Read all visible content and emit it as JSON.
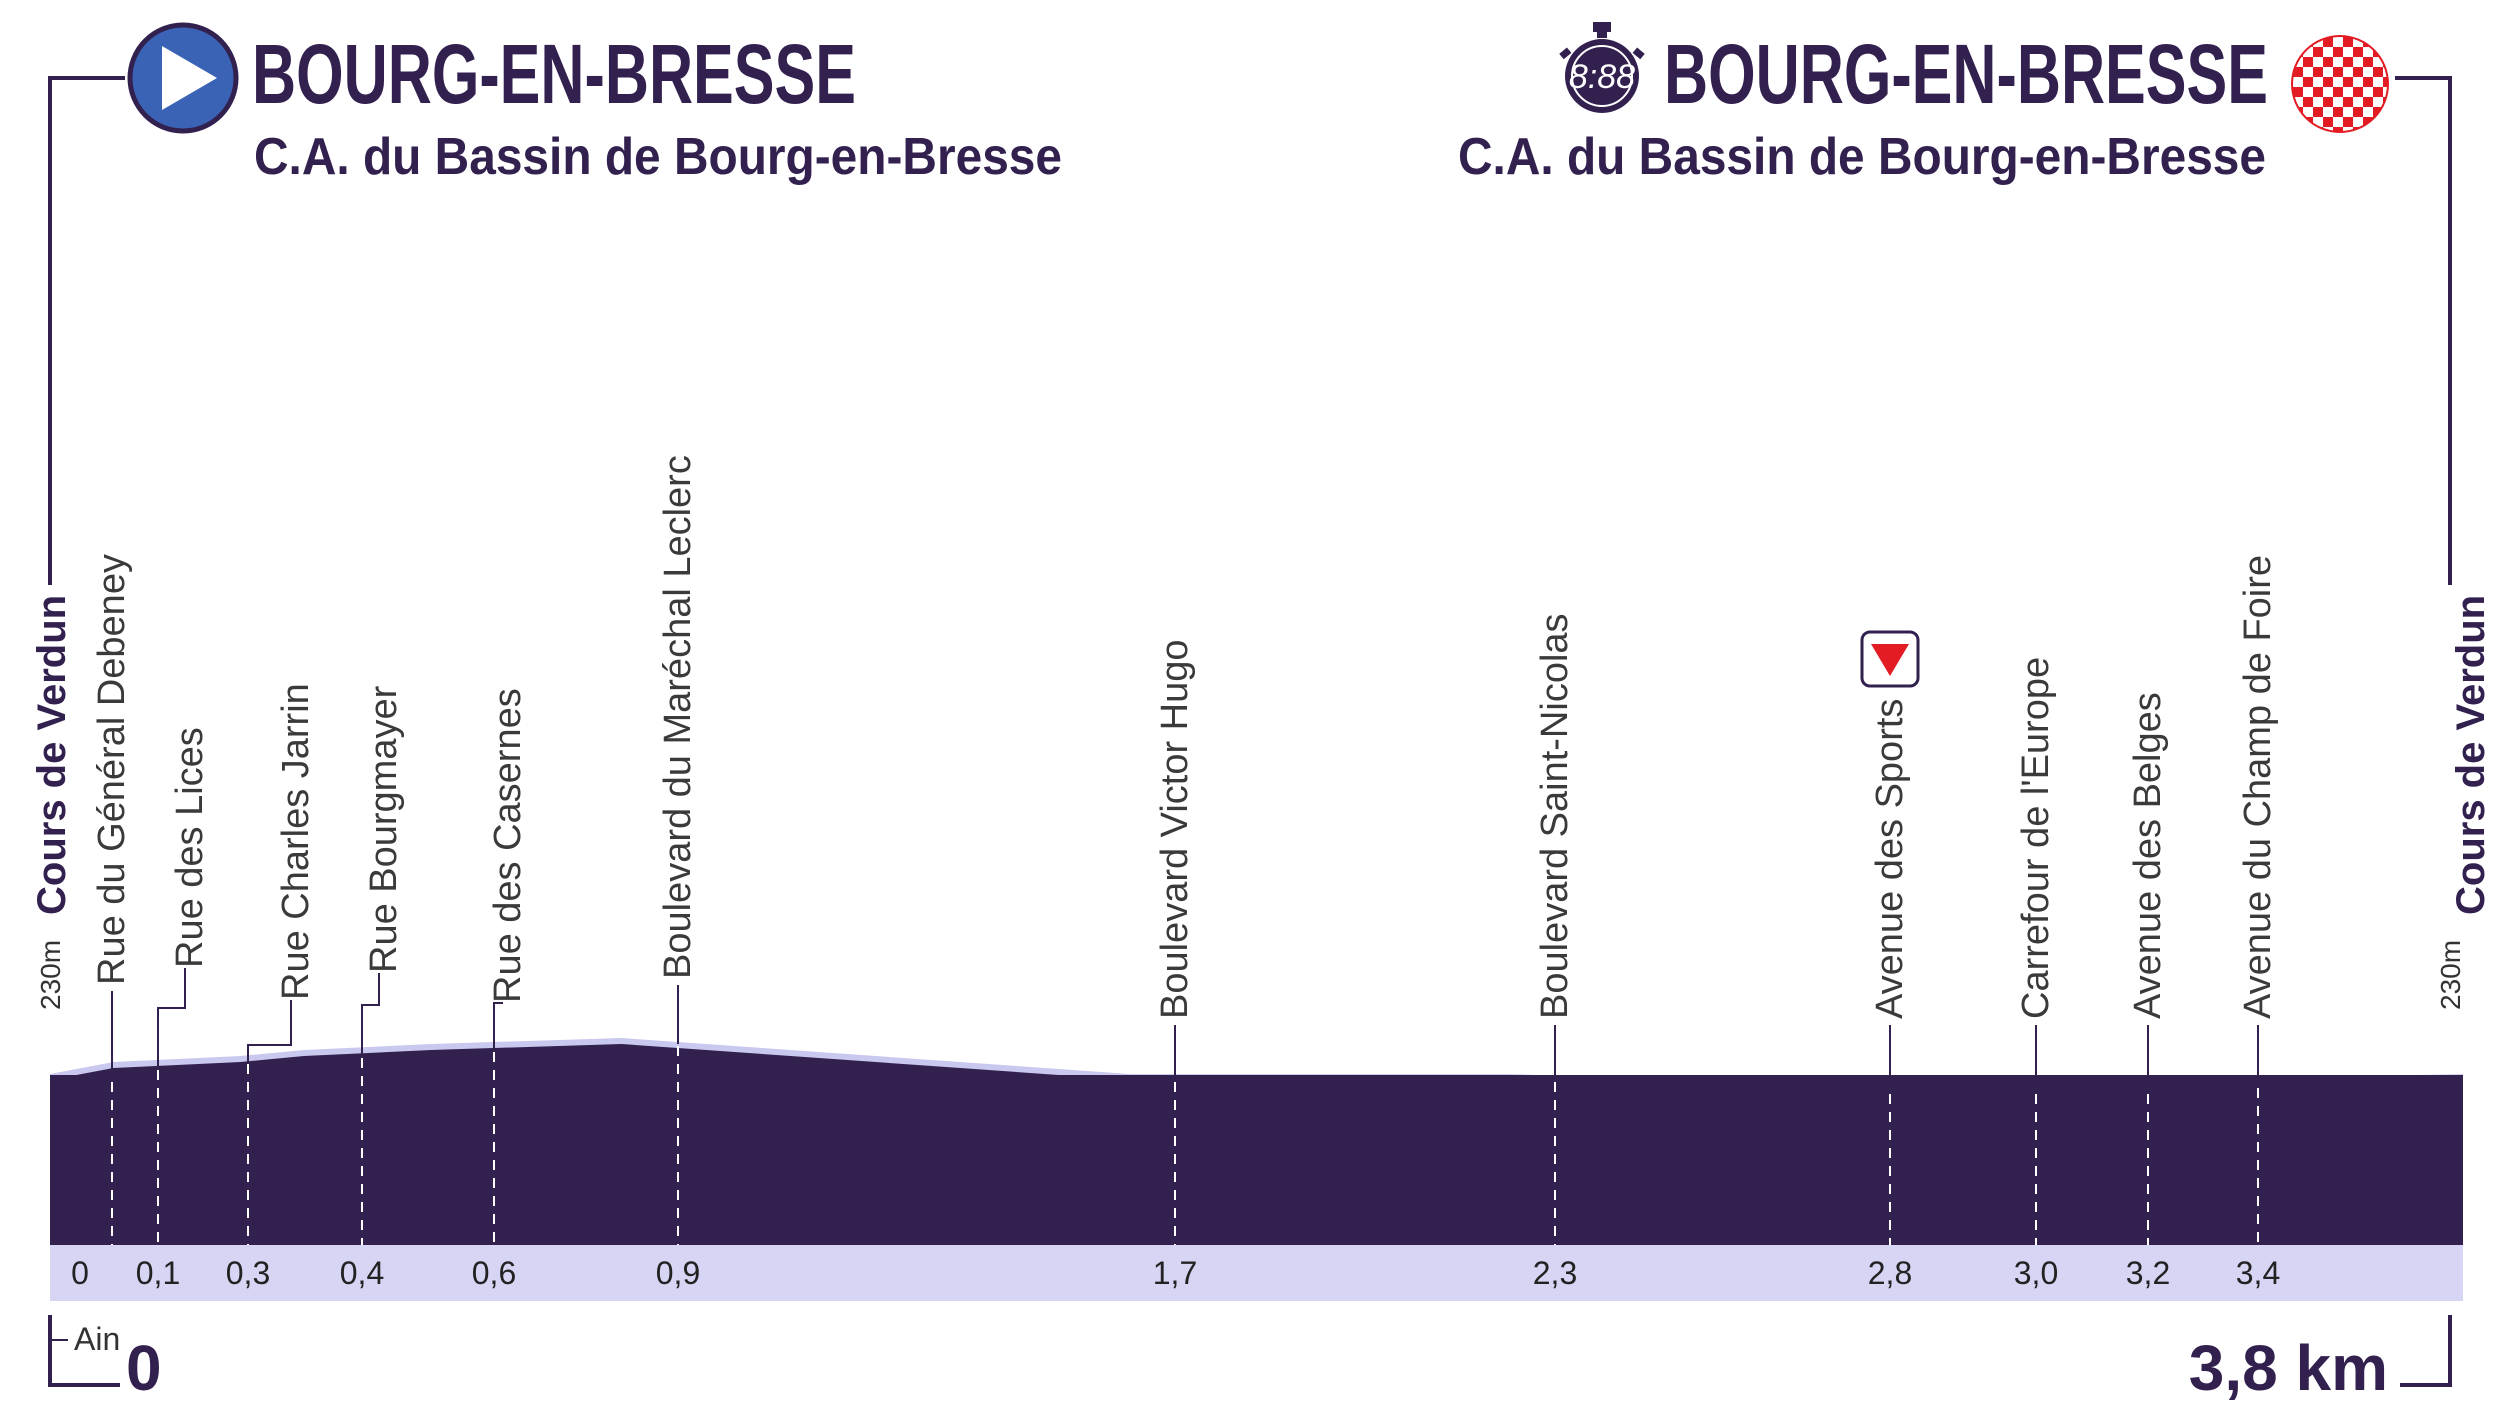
{
  "start": {
    "city": "BOURG-EN-BRESSE",
    "subtitle": "C.A. du Bassin de Bourg-en-Bresse"
  },
  "finish": {
    "city": "BOURG-EN-BRESSE",
    "subtitle": "C.A. du Bassin de Bourg-en-Bresse",
    "timer_text": "8:88"
  },
  "side_labels": {
    "left": "Cours de Verdun",
    "right": "Cours de Verdun",
    "left_altitude": "230m",
    "right_altitude": "230m"
  },
  "department": "Ain",
  "distance": {
    "start_label": "0",
    "end_label": "3,8 km"
  },
  "colors": {
    "profile_fill": "#32204f",
    "profile_shadow": "#c9c8ee",
    "km_band": "#d6d5f4",
    "text_dark": "#32204f",
    "start_icon": "#3b63b5",
    "finish_red": "#e31b23"
  },
  "icons": {
    "start": "play-triangle-icon",
    "timer": "stopwatch-icon",
    "finish": "checkered-flag-icon",
    "marker": "red-down-triangle-icon"
  },
  "chart_data": {
    "type": "area",
    "xlabel": "",
    "ylabel": "",
    "x_unit": "km",
    "xlim": [
      0,
      3.8
    ],
    "profile": [
      {
        "km": 0.0,
        "alt": 230
      },
      {
        "km": 0.1,
        "alt": 232
      },
      {
        "km": 0.3,
        "alt": 233
      },
      {
        "km": 0.4,
        "alt": 234
      },
      {
        "km": 0.6,
        "alt": 235
      },
      {
        "km": 0.9,
        "alt": 236
      },
      {
        "km": 1.7,
        "alt": 230
      },
      {
        "km": 2.3,
        "alt": 230
      },
      {
        "km": 2.8,
        "alt": 228
      },
      {
        "km": 3.0,
        "alt": 228
      },
      {
        "km": 3.2,
        "alt": 228
      },
      {
        "km": 3.4,
        "alt": 229
      },
      {
        "km": 3.8,
        "alt": 230
      }
    ],
    "waypoints": [
      {
        "name": "Rue du Général Debeney",
        "km_label": "0"
      },
      {
        "name": "Rue des Lices",
        "km_label": "0,1"
      },
      {
        "name": "Rue Charles Jarrin",
        "km_label": "0,3"
      },
      {
        "name": "Rue Bourgmayer",
        "km_label": "0,4"
      },
      {
        "name": "Rue des Casernes",
        "km_label": "0,6"
      },
      {
        "name": "Boulevard du Maréchal Leclerc",
        "km_label": "0,9"
      },
      {
        "name": "Boulevard Victor Hugo",
        "km_label": "1,7"
      },
      {
        "name": "Boulevard Saint-Nicolas",
        "km_label": "2,3"
      },
      {
        "name": "Avenue des Sports",
        "km_label": "2,8",
        "marker": true
      },
      {
        "name": "Carrefour de l'Europe",
        "km_label": "3,0"
      },
      {
        "name": "Avenue des Belges",
        "km_label": "3,2"
      },
      {
        "name": "Avenue du Champ de Foire",
        "km_label": "3,4"
      }
    ]
  }
}
